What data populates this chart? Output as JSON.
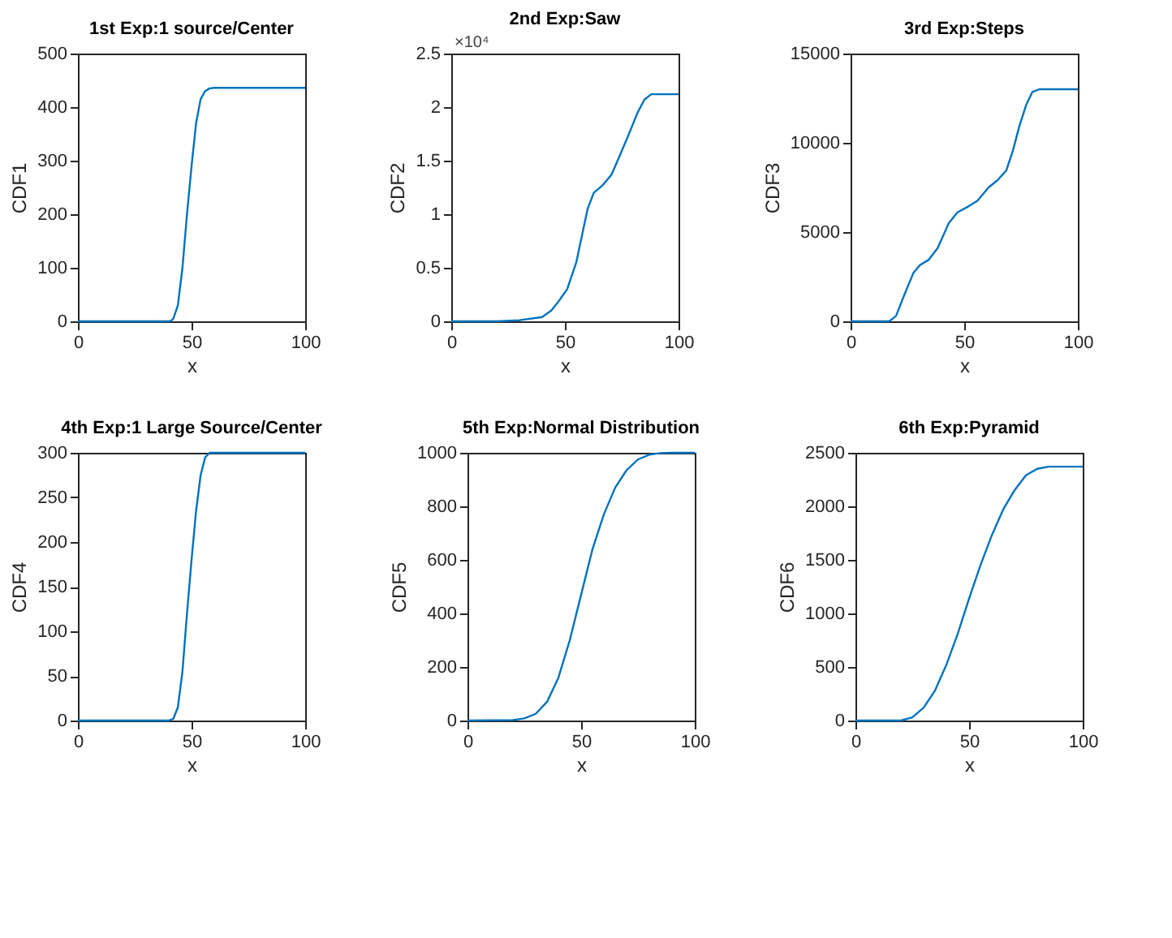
{
  "chart_data": [
    {
      "type": "line",
      "title": "1st Exp:1 source/Center",
      "xlabel": "x",
      "ylabel": "CDF1",
      "xlim": [
        0,
        100
      ],
      "xticks": [
        0,
        50,
        100
      ],
      "ylim": [
        0,
        500
      ],
      "yticks": [
        0,
        100,
        200,
        300,
        400,
        500
      ],
      "x": [
        0,
        20,
        40,
        41,
        42,
        44,
        46,
        48,
        50,
        52,
        54,
        56,
        58,
        60,
        80,
        100
      ],
      "series": [
        {
          "color": "#0072bd",
          "values": [
            0,
            0,
            0,
            1,
            5,
            30,
            100,
            200,
            290,
            370,
            415,
            430,
            435,
            436,
            436,
            436
          ]
        }
      ]
    },
    {
      "type": "line",
      "title": "2nd Exp:Saw",
      "xlabel": "x",
      "ylabel": "CDF2",
      "annotations": [
        "×10⁴"
      ],
      "xlim": [
        0,
        100
      ],
      "xticks": [
        0,
        50,
        100
      ],
      "ylim": [
        0,
        2.5
      ],
      "yticks": [
        0,
        0.5,
        1,
        1.5,
        2,
        2.5
      ],
      "x": [
        0,
        20,
        30,
        40,
        44,
        47,
        51,
        55,
        58,
        60,
        62.7,
        66.6,
        70.5,
        74,
        78,
        82,
        85,
        88,
        100
      ],
      "series": [
        {
          "color": "#0072bd",
          "values": [
            0,
            0,
            0.01,
            0.04,
            0.1,
            0.18,
            0.3,
            0.55,
            0.85,
            1.05,
            1.2,
            1.27,
            1.37,
            1.54,
            1.74,
            1.95,
            2.07,
            2.12,
            2.12
          ]
        }
      ]
    },
    {
      "type": "line",
      "title": "3rd Exp:Steps",
      "xlabel": "x",
      "ylabel": "CDF3",
      "xlim": [
        0,
        100
      ],
      "xticks": [
        0,
        50,
        100
      ],
      "ylim": [
        0,
        15000
      ],
      "yticks": [
        0,
        5000,
        10000,
        15000
      ],
      "x": [
        0,
        17,
        20,
        23.7,
        27.6,
        30.5,
        34.4,
        38.3,
        43.2,
        47,
        52,
        55.8,
        60.7,
        64.6,
        68.5,
        71.4,
        74.3,
        77.2,
        80,
        83,
        100
      ],
      "series": [
        {
          "color": "#0072bd",
          "values": [
            0,
            0,
            300,
            1500,
            2700,
            3150,
            3450,
            4100,
            5500,
            6100,
            6450,
            6750,
            7500,
            7900,
            8450,
            9550,
            10950,
            12100,
            12850,
            13000,
            13000
          ]
        }
      ]
    },
    {
      "type": "line",
      "title": "4th Exp:1 Large Source/Center",
      "xlabel": "x",
      "ylabel": "CDF4",
      "xlim": [
        0,
        100
      ],
      "xticks": [
        0,
        50,
        100
      ],
      "ylim": [
        0,
        300
      ],
      "yticks": [
        0,
        50,
        100,
        150,
        200,
        250,
        300
      ],
      "x": [
        0,
        20,
        40,
        42,
        44,
        46,
        48,
        50,
        52,
        54,
        56,
        58,
        80,
        100
      ],
      "series": [
        {
          "color": "#0072bd",
          "values": [
            0,
            0,
            0,
            2,
            15,
            55,
            120,
            180,
            235,
            275,
            295,
            300,
            300,
            300
          ]
        }
      ]
    },
    {
      "type": "line",
      "title": "5th Exp:Normal Distribution",
      "xlabel": "x",
      "ylabel": "CDF5",
      "xlim": [
        0,
        100
      ],
      "xticks": [
        0,
        50,
        100
      ],
      "ylim": [
        0,
        1000
      ],
      "yticks": [
        0,
        200,
        400,
        600,
        800,
        1000
      ],
      "x": [
        0,
        20,
        25,
        30,
        35,
        40,
        45,
        50,
        55,
        60,
        65,
        70,
        75,
        80,
        85,
        90,
        100
      ],
      "series": [
        {
          "color": "#0072bd",
          "values": [
            0,
            2,
            8,
            25,
            70,
            160,
            300,
            470,
            640,
            770,
            870,
            935,
            975,
            993,
            999,
            1000,
            1000
          ]
        }
      ]
    },
    {
      "type": "line",
      "title": "6th Exp:Pyramid",
      "xlabel": "x",
      "ylabel": "CDF6",
      "xlim": [
        0,
        100
      ],
      "xticks": [
        0,
        50,
        100
      ],
      "ylim": [
        0,
        2500
      ],
      "yticks": [
        0,
        500,
        1000,
        1500,
        2000,
        2500
      ],
      "x": [
        0,
        20,
        25,
        30,
        35,
        40,
        45,
        50,
        55,
        60,
        65,
        70,
        75,
        80,
        85,
        100
      ],
      "series": [
        {
          "color": "#0072bd",
          "values": [
            0,
            0,
            30,
            120,
            280,
            520,
            810,
            1140,
            1450,
            1730,
            1970,
            2150,
            2290,
            2350,
            2370,
            2370
          ]
        }
      ]
    }
  ]
}
